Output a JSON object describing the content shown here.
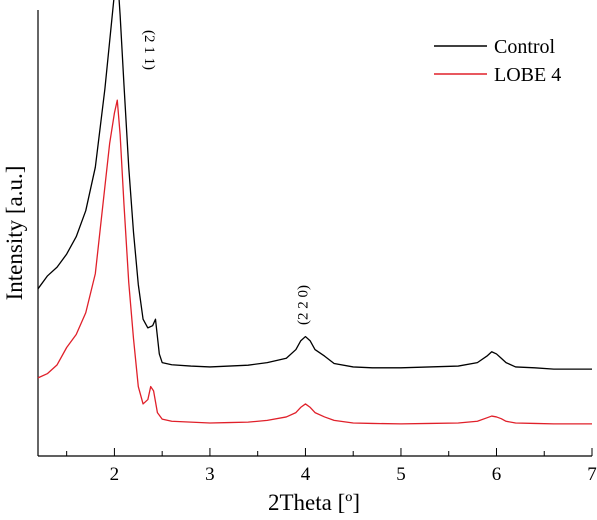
{
  "chart_data": {
    "type": "line",
    "xlabel": "2Theta [º]",
    "ylabel": "Intensity [a.u.]",
    "xlim": [
      1.2,
      7.0
    ],
    "ylim": [
      0,
      1.0
    ],
    "x_ticks": [
      2,
      3,
      4,
      5,
      6,
      7
    ],
    "x_minor_ticks": [
      1.5,
      2.5,
      3.5,
      4.5,
      5.5,
      6.5
    ],
    "x_tick_labels": [
      "2",
      "3",
      "4",
      "5",
      "6",
      "7"
    ],
    "y_ticks_visible": false,
    "grid": false,
    "legend_position": "top-right",
    "series": [
      {
        "name": "Control",
        "color": "#000000",
        "x": [
          1.2,
          1.3,
          1.4,
          1.5,
          1.6,
          1.7,
          1.8,
          1.85,
          1.9,
          1.95,
          2.0,
          2.03,
          2.06,
          2.1,
          2.15,
          2.2,
          2.25,
          2.3,
          2.35,
          2.4,
          2.43,
          2.47,
          2.5,
          2.6,
          2.8,
          3.0,
          3.2,
          3.4,
          3.6,
          3.8,
          3.9,
          3.95,
          4.0,
          4.05,
          4.1,
          4.2,
          4.3,
          4.5,
          4.7,
          5.0,
          5.3,
          5.6,
          5.8,
          5.9,
          5.95,
          6.0,
          6.05,
          6.1,
          6.2,
          6.4,
          6.6,
          6.8,
          7.0
        ],
        "values": [
          0.27,
          0.3,
          0.32,
          0.35,
          0.39,
          0.45,
          0.55,
          0.64,
          0.73,
          0.84,
          0.95,
          1.0,
          0.9,
          0.74,
          0.55,
          0.4,
          0.28,
          0.2,
          0.18,
          0.185,
          0.2,
          0.12,
          0.1,
          0.095,
          0.092,
          0.09,
          0.092,
          0.094,
          0.1,
          0.11,
          0.13,
          0.15,
          0.16,
          0.15,
          0.13,
          0.115,
          0.098,
          0.09,
          0.088,
          0.088,
          0.09,
          0.092,
          0.1,
          0.115,
          0.125,
          0.12,
          0.11,
          0.1,
          0.09,
          0.088,
          0.085,
          0.085,
          0.085
        ]
      },
      {
        "name": "LOBE 4",
        "color": "#e0202a",
        "x": [
          1.2,
          1.3,
          1.4,
          1.5,
          1.6,
          1.7,
          1.8,
          1.85,
          1.9,
          1.95,
          2.0,
          2.03,
          2.06,
          2.1,
          2.15,
          2.2,
          2.25,
          2.3,
          2.35,
          2.38,
          2.41,
          2.45,
          2.5,
          2.6,
          2.8,
          3.0,
          3.2,
          3.4,
          3.6,
          3.8,
          3.9,
          3.95,
          4.0,
          4.05,
          4.1,
          4.2,
          4.3,
          4.5,
          4.7,
          5.0,
          5.3,
          5.6,
          5.8,
          5.9,
          5.95,
          6.0,
          6.05,
          6.1,
          6.2,
          6.4,
          6.6,
          6.8,
          7.0
        ],
        "values": [
          0.18,
          0.19,
          0.21,
          0.25,
          0.28,
          0.33,
          0.42,
          0.52,
          0.62,
          0.72,
          0.79,
          0.82,
          0.74,
          0.58,
          0.4,
          0.27,
          0.16,
          0.12,
          0.13,
          0.16,
          0.15,
          0.1,
          0.085,
          0.08,
          0.078,
          0.076,
          0.077,
          0.078,
          0.082,
          0.09,
          0.1,
          0.112,
          0.12,
          0.112,
          0.1,
          0.09,
          0.082,
          0.076,
          0.075,
          0.074,
          0.075,
          0.076,
          0.08,
          0.088,
          0.092,
          0.09,
          0.086,
          0.08,
          0.076,
          0.075,
          0.074,
          0.074,
          0.074
        ]
      }
    ],
    "annotations": [
      {
        "text": "(2 1 1)",
        "x": 2.32,
        "y": 0.98,
        "rotation": 90
      },
      {
        "text": "(2 2 0)",
        "x": 4.02,
        "y": 0.24,
        "rotation": -90
      }
    ]
  }
}
